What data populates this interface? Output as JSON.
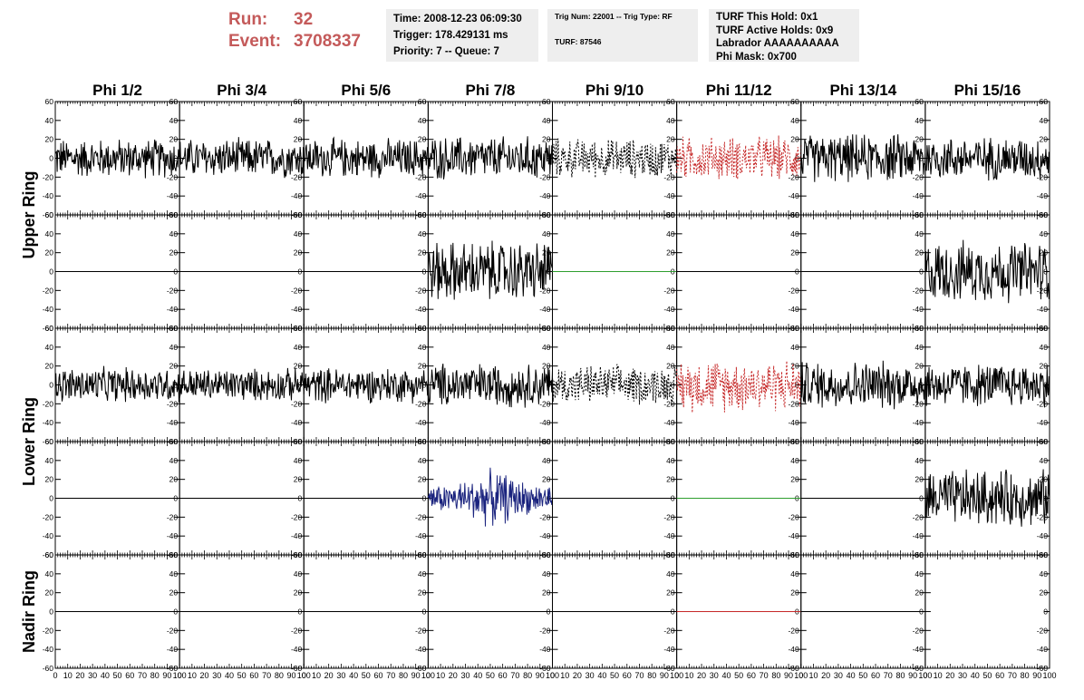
{
  "header": {
    "run_label": "Run:",
    "run_value": "32",
    "event_label": "Event:",
    "event_value": "3708337",
    "time": "Time: 2008-12-23 06:09:30",
    "trigger": "Trigger: 178.429131 ms",
    "priority_queue": "Priority: 7 -- Queue: 7",
    "trig_num_type": "Trig Num: 22001 -- Trig Type: RF",
    "turf": "TURF: 87546",
    "turf_this_hold": "TURF This Hold: 0x1",
    "turf_active_holds": "TURF Active Holds: 0x9",
    "labrador": "Labrador AAAAAAAAAA",
    "phi_mask": "Phi Mask: 0x700"
  },
  "colors": {
    "header_red": "#c45a5a",
    "trace_black": "#000000",
    "trace_red": "#c62828",
    "trace_green": "#2e9e2e",
    "trace_blue": "#1a237e",
    "info_bg": "#eeeeee"
  },
  "chart_data": {
    "type": "line",
    "columns": [
      "Phi 1/2",
      "Phi 3/4",
      "Phi 5/6",
      "Phi 7/8",
      "Phi 9/10",
      "Phi 11/12",
      "Phi 13/14",
      "Phi 15/16"
    ],
    "ring_labels": [
      "Upper Ring",
      "Lower Ring",
      "Nadir Ring"
    ],
    "xlim": [
      0,
      100
    ],
    "ylim": [
      -60,
      60
    ],
    "y_ticks": [
      -60,
      -40,
      -20,
      0,
      20,
      40,
      60
    ],
    "x_tick_labels": [
      "0",
      "10",
      "20",
      "30",
      "40",
      "50",
      "60",
      "70",
      "80",
      "90",
      "100"
    ],
    "row_ring_index": [
      0,
      0,
      1,
      1,
      2
    ],
    "panels": [
      [
        "noise:black:18",
        "noise:black:18",
        "noise:black:18",
        "noise:black:20",
        "noise-dotted:black:18",
        "noise-dotted:red:20",
        "noise:black:22",
        "noise:black:20"
      ],
      [
        "flat:black",
        "flat:black",
        "flat:black",
        "noise:black:28",
        "flat:green",
        "flat:black",
        "flat:black",
        "noise:black:28"
      ],
      [
        "noise:black:16",
        "noise:black:15",
        "noise:black:16",
        "noise:black:20",
        "noise-dotted:black:18",
        "noise-dotted:red:24",
        "noise:black:22",
        "noise:black:20"
      ],
      [
        "flat:black",
        "flat:black",
        "flat:black",
        "burst:blue:22",
        "flat:black",
        "flat:green",
        "flat:black",
        "noise:black:26"
      ],
      [
        "flat:black",
        "flat:black",
        "flat:black",
        "flat:black",
        "flat:black",
        "flat:red",
        "flat:black",
        "none"
      ]
    ]
  }
}
